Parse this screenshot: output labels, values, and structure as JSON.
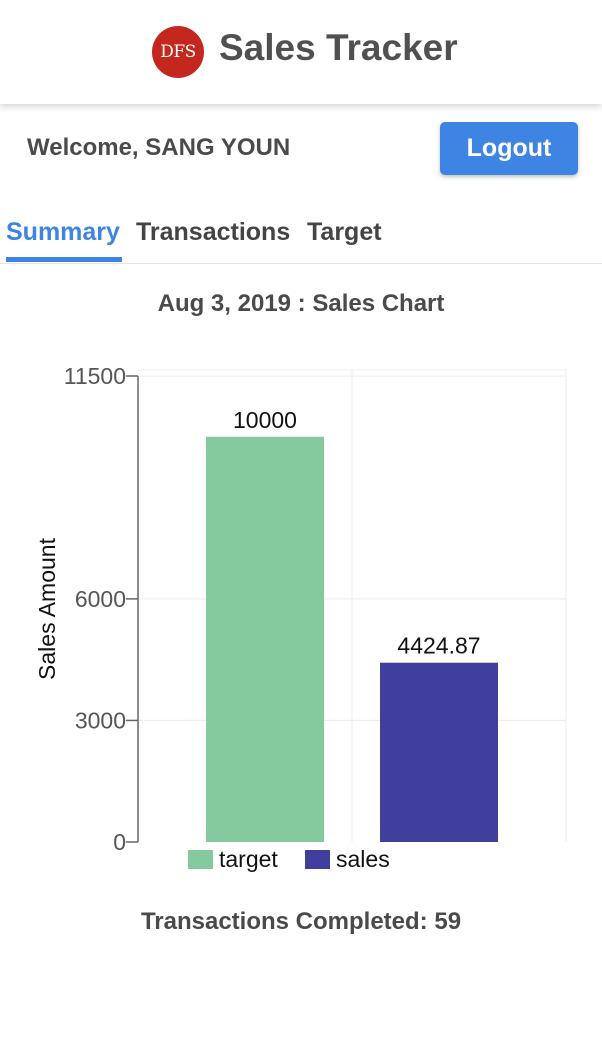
{
  "header": {
    "logo_text": "DFS",
    "title": "Sales Tracker"
  },
  "user": {
    "welcome": "Welcome, SANG YOUN",
    "logout_label": "Logout"
  },
  "tabs": [
    {
      "label": "Summary",
      "active": true
    },
    {
      "label": "Transactions",
      "active": false
    },
    {
      "label": "Target",
      "active": false
    }
  ],
  "chart_data": {
    "type": "bar",
    "title": "Aug 3, 2019 : Sales Chart",
    "ylabel": "Sales Amount",
    "xlabel": "",
    "ylim": [
      0,
      11500
    ],
    "yticks": [
      0,
      3000,
      6000,
      11500
    ],
    "grid": true,
    "legend_position": "bottom-left",
    "series": [
      {
        "name": "target",
        "value": 10000,
        "value_label": "10000",
        "color": "#85c99e"
      },
      {
        "name": "sales",
        "value": 4424.87,
        "value_label": "4424.87",
        "color": "#413f9e"
      }
    ]
  },
  "stats": {
    "transactions_completed": "Transactions Completed: 59"
  },
  "colors": {
    "accent": "#3d84e3",
    "logo": "#c4271d",
    "text": "#4a4a4a"
  }
}
